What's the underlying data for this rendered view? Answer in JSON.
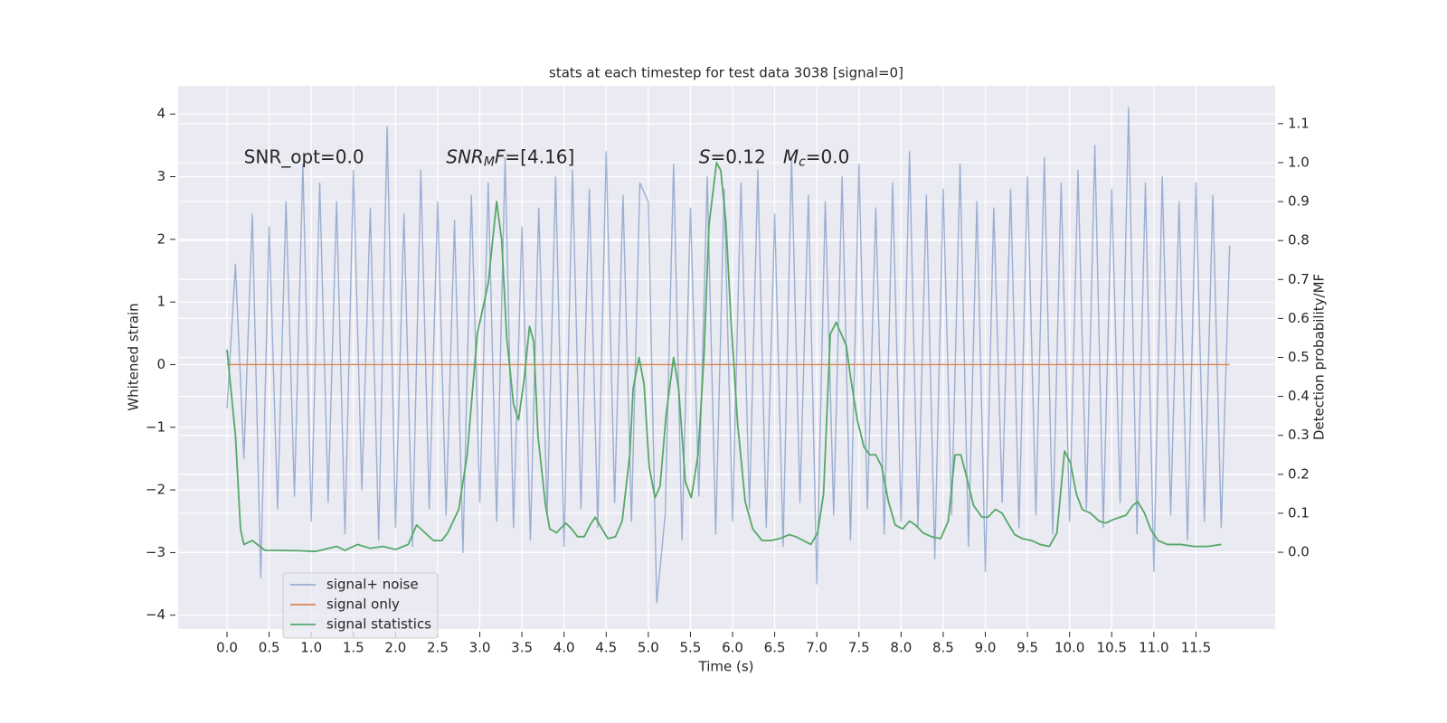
{
  "chart_data": {
    "type": "line",
    "title": "stats at each timestep for test data 3038 [signal=0]",
    "xlabel": "Time (s)",
    "ylabel": "Whitened strain",
    "y2label": "Detection probability/MF",
    "annotations": [
      {
        "x": 0.2,
        "y": 3.3,
        "parts": [
          {
            "text": "SNR_opt=0.0"
          }
        ]
      },
      {
        "x": 2.6,
        "y": 3.3,
        "parts": [
          {
            "text": "SNR",
            "italic": true
          },
          {
            "text": "M",
            "italic": true,
            "sub": true
          },
          {
            "text": "F",
            "italic": true
          },
          {
            "text": "=[4.16]"
          }
        ]
      },
      {
        "x": 5.6,
        "y": 3.3,
        "parts": [
          {
            "text": "S",
            "italic": true
          },
          {
            "text": "=0.12   "
          },
          {
            "text": "M",
            "italic": true
          },
          {
            "text": "c",
            "italic": true,
            "sub": true
          },
          {
            "text": "=0.0"
          }
        ]
      }
    ],
    "xlim": [
      -0.58,
      12.44
    ],
    "ylim": [
      -4.22,
      4.45
    ],
    "y2lim": [
      -0.197,
      1.197
    ],
    "xticks": [
      {
        "value": 0,
        "label": "0.0"
      },
      {
        "value": 0.5,
        "label": "0.5"
      },
      {
        "value": 1,
        "label": "1.0"
      },
      {
        "value": 1.5,
        "label": "1.5"
      },
      {
        "value": 2,
        "label": "2.0"
      },
      {
        "value": 2.5,
        "label": "2.5"
      },
      {
        "value": 3,
        "label": "3.0"
      },
      {
        "value": 3.5,
        "label": "3.5"
      },
      {
        "value": 4,
        "label": "4.0"
      },
      {
        "value": 4.5,
        "label": "4.5"
      },
      {
        "value": 5,
        "label": "5.0"
      },
      {
        "value": 5.5,
        "label": "5.5"
      },
      {
        "value": 6,
        "label": "6.0"
      },
      {
        "value": 6.5,
        "label": "6.5"
      },
      {
        "value": 7,
        "label": "7.0"
      },
      {
        "value": 7.5,
        "label": "7.5"
      },
      {
        "value": 8,
        "label": "8.0"
      },
      {
        "value": 8.5,
        "label": "8.5"
      },
      {
        "value": 9,
        "label": "9.0"
      },
      {
        "value": 9.5,
        "label": "9.5"
      },
      {
        "value": 10,
        "label": "10.0"
      },
      {
        "value": 10.5,
        "label": "10.5"
      },
      {
        "value": 11,
        "label": "11.0"
      },
      {
        "value": 11.5,
        "label": "11.5"
      }
    ],
    "yticks": [
      {
        "value": -4,
        "label": "−4"
      },
      {
        "value": -3,
        "label": "−3"
      },
      {
        "value": -2,
        "label": "−2"
      },
      {
        "value": -1,
        "label": "−1"
      },
      0,
      1,
      2,
      3,
      4
    ],
    "y2ticks": [
      {
        "value": 0,
        "label": "0.0"
      },
      {
        "value": 0.1,
        "label": "0.1"
      },
      {
        "value": 0.2,
        "label": "0.2"
      },
      {
        "value": 0.3,
        "label": "0.3"
      },
      {
        "value": 0.4,
        "label": "0.4"
      },
      {
        "value": 0.5,
        "label": "0.5"
      },
      {
        "value": 0.6,
        "label": "0.6"
      },
      {
        "value": 0.7,
        "label": "0.7"
      },
      {
        "value": 0.8,
        "label": "0.8"
      },
      {
        "value": 0.9,
        "label": "0.9"
      },
      {
        "value": 1.0,
        "label": "1.0"
      },
      {
        "value": 1.1,
        "label": "1.1"
      }
    ],
    "grid": true,
    "legend": "lower left",
    "series": [
      {
        "name": "signal+ noise",
        "color": "#4c72b0",
        "alpha": 0.5,
        "x": [
          0.0,
          0.1,
          0.2,
          0.3,
          0.4,
          0.5,
          0.6,
          0.7,
          0.8,
          0.9,
          1.0,
          1.1,
          1.2,
          1.3,
          1.4,
          1.5,
          1.6,
          1.7,
          1.8,
          1.9,
          2.0,
          2.1,
          2.2,
          2.3,
          2.4,
          2.5,
          2.6,
          2.7,
          2.8,
          2.9,
          3.0,
          3.1,
          3.2,
          3.3,
          3.4,
          3.5,
          3.6,
          3.7,
          3.8,
          3.9,
          4.0,
          4.1,
          4.2,
          4.3,
          4.4,
          4.5,
          4.6,
          4.7,
          4.8,
          4.9,
          5.0,
          5.1,
          5.2,
          5.3,
          5.4,
          5.5,
          5.6,
          5.7,
          5.8,
          5.9,
          6.0,
          6.1,
          6.2,
          6.3,
          6.4,
          6.5,
          6.6,
          6.7,
          6.8,
          6.9,
          7.0,
          7.1,
          7.2,
          7.3,
          7.4,
          7.5,
          7.6,
          7.7,
          7.8,
          7.9,
          8.0,
          8.1,
          8.2,
          8.3,
          8.4,
          8.5,
          8.6,
          8.7,
          8.8,
          8.9,
          9.0,
          9.1,
          9.2,
          9.3,
          9.4,
          9.5,
          9.6,
          9.7,
          9.8,
          9.9,
          10.0,
          10.1,
          10.2,
          10.3,
          10.4,
          10.5,
          10.6,
          10.7,
          10.8,
          10.9,
          11.0,
          11.1,
          11.2,
          11.3,
          11.4,
          11.5,
          11.6,
          11.7,
          11.8,
          11.9
        ],
        "values": [
          -0.7,
          1.6,
          -1.5,
          2.4,
          -3.4,
          2.2,
          -2.3,
          2.6,
          -2.1,
          3.2,
          -2.5,
          2.9,
          -2.2,
          2.6,
          -2.7,
          3.1,
          -2.0,
          2.5,
          -2.8,
          3.8,
          -2.6,
          2.4,
          -2.9,
          3.1,
          -2.3,
          2.6,
          -2.4,
          2.3,
          -3.0,
          2.7,
          -2.2,
          2.9,
          -2.5,
          3.3,
          -2.6,
          2.2,
          -2.8,
          2.5,
          -2.4,
          3.0,
          -2.9,
          3.1,
          -2.3,
          2.8,
          -2.6,
          3.4,
          -2.2,
          2.7,
          -2.5,
          2.9,
          2.6,
          -3.8,
          -2.4,
          3.2,
          -2.8,
          2.5,
          -2.1,
          3.0,
          -2.7,
          2.8,
          -2.5,
          2.9,
          -2.3,
          3.1,
          -2.6,
          2.4,
          -2.9,
          3.3,
          -2.2,
          2.7,
          -3.5,
          2.6,
          -2.4,
          3.0,
          -2.8,
          3.2,
          -2.3,
          2.5,
          -2.7,
          2.9,
          -2.5,
          3.4,
          -2.6,
          2.7,
          -3.1,
          2.8,
          -2.4,
          3.2,
          -2.9,
          2.6,
          -3.3,
          2.5,
          -2.2,
          2.8,
          -2.6,
          3.0,
          -2.4,
          3.3,
          -2.7,
          2.9,
          -2.5,
          3.1,
          -2.3,
          3.5,
          -2.6,
          2.8,
          -2.2,
          4.1,
          -2.7,
          2.9,
          -3.3,
          3.0,
          -2.4,
          2.6,
          -2.8,
          2.9,
          -2.5,
          2.7,
          -2.6,
          1.9
        ]
      },
      {
        "name": "signal only",
        "color": "#dd8452",
        "x": [
          0.0,
          11.9
        ],
        "values": [
          0,
          0
        ]
      },
      {
        "name": "signal statistics",
        "color": "#55a868",
        "axis": "y2",
        "x": [
          0,
          0.1,
          0.16,
          0.2,
          0.3,
          0.45,
          0.85,
          1.05,
          1.3,
          1.4,
          1.55,
          1.7,
          1.85,
          2.0,
          2.15,
          2.25,
          2.35,
          2.45,
          2.55,
          2.62,
          2.75,
          2.85,
          2.97,
          3.1,
          3.2,
          3.26,
          3.32,
          3.4,
          3.46,
          3.53,
          3.59,
          3.64,
          3.69,
          3.78,
          3.83,
          3.91,
          4.02,
          4.09,
          4.16,
          4.24,
          4.31,
          4.37,
          4.45,
          4.52,
          4.61,
          4.69,
          4.78,
          4.82,
          4.89,
          4.95,
          5.01,
          5.08,
          5.14,
          5.21,
          5.3,
          5.36,
          5.44,
          5.51,
          5.59,
          5.66,
          5.72,
          5.81,
          5.86,
          5.92,
          5.98,
          6.06,
          6.15,
          6.24,
          6.35,
          6.45,
          6.56,
          6.67,
          6.75,
          6.84,
          6.93,
          7.01,
          7.08,
          7.16,
          7.23,
          7.35,
          7.4,
          7.48,
          7.56,
          7.63,
          7.7,
          7.77,
          7.85,
          7.93,
          8.02,
          8.1,
          8.17,
          8.26,
          8.36,
          8.47,
          8.56,
          8.64,
          8.71,
          8.77,
          8.86,
          8.96,
          9.03,
          9.12,
          9.2,
          9.28,
          9.35,
          9.44,
          9.55,
          9.65,
          9.76,
          9.85,
          9.94,
          10.01,
          10.08,
          10.15,
          10.25,
          10.35,
          10.43,
          10.53,
          10.67,
          10.75,
          10.81,
          10.89,
          10.96,
          11.05,
          11.16,
          11.32,
          11.48,
          11.64,
          11.8
        ],
        "values": [
          0.52,
          0.3,
          0.06,
          0.02,
          0.03,
          0.005,
          0.004,
          0.002,
          0.015,
          0.005,
          0.02,
          0.01,
          0.015,
          0.007,
          0.02,
          0.07,
          0.05,
          0.03,
          0.03,
          0.05,
          0.11,
          0.25,
          0.56,
          0.69,
          0.9,
          0.8,
          0.55,
          0.38,
          0.34,
          0.45,
          0.58,
          0.54,
          0.3,
          0.12,
          0.06,
          0.05,
          0.075,
          0.06,
          0.04,
          0.04,
          0.07,
          0.09,
          0.06,
          0.035,
          0.04,
          0.08,
          0.25,
          0.42,
          0.5,
          0.43,
          0.22,
          0.14,
          0.17,
          0.35,
          0.5,
          0.42,
          0.18,
          0.14,
          0.25,
          0.5,
          0.84,
          1.0,
          0.98,
          0.85,
          0.6,
          0.33,
          0.13,
          0.06,
          0.03,
          0.03,
          0.035,
          0.045,
          0.04,
          0.03,
          0.02,
          0.05,
          0.15,
          0.56,
          0.59,
          0.53,
          0.45,
          0.34,
          0.27,
          0.25,
          0.25,
          0.22,
          0.13,
          0.07,
          0.06,
          0.08,
          0.07,
          0.05,
          0.04,
          0.035,
          0.08,
          0.25,
          0.25,
          0.2,
          0.12,
          0.09,
          0.09,
          0.11,
          0.1,
          0.07,
          0.045,
          0.035,
          0.03,
          0.02,
          0.015,
          0.05,
          0.26,
          0.23,
          0.15,
          0.11,
          0.1,
          0.08,
          0.075,
          0.085,
          0.095,
          0.12,
          0.13,
          0.1,
          0.06,
          0.03,
          0.02,
          0.02,
          0.015,
          0.015,
          0.02
        ]
      }
    ]
  }
}
